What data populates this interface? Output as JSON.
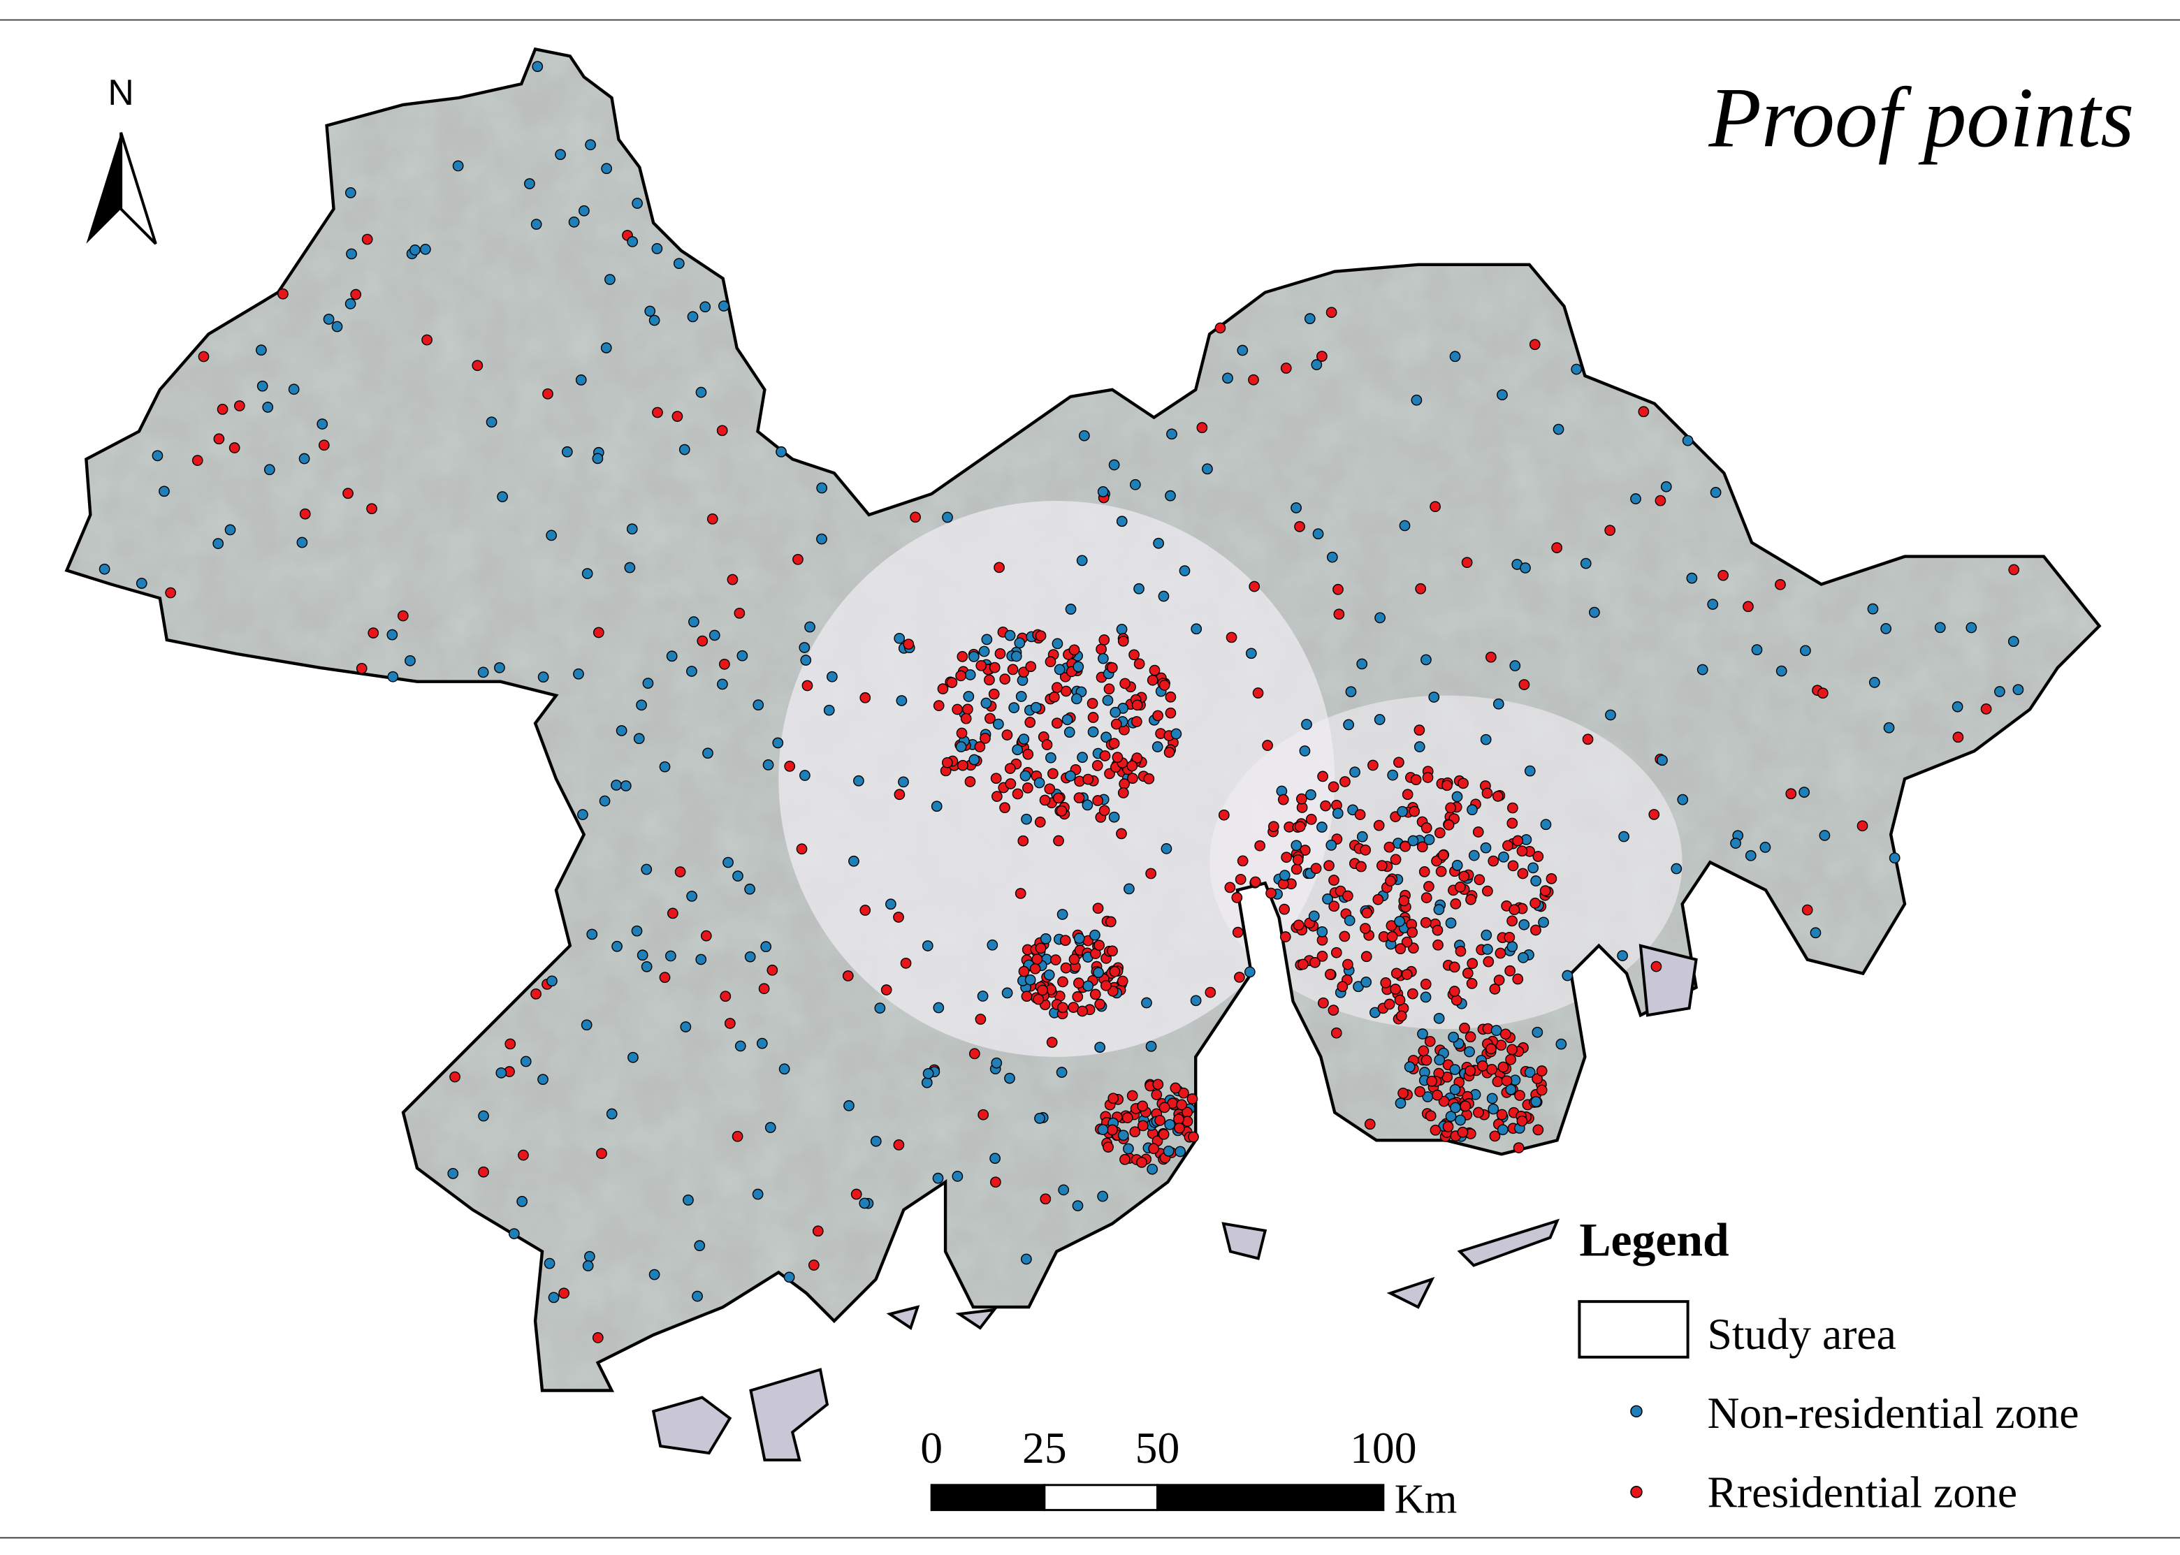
{
  "title": "Proof points",
  "north_label": "N",
  "legend": {
    "title": "Legend",
    "items": [
      {
        "label": "Study area"
      },
      {
        "label": "Non-residential zone",
        "color": "#1f7fb8"
      },
      {
        "label": "Rresidential zone",
        "color": "#e8161b"
      }
    ]
  },
  "scale_bar": {
    "ticks": [
      0,
      25,
      50,
      100
    ],
    "unit": "Km"
  }
}
